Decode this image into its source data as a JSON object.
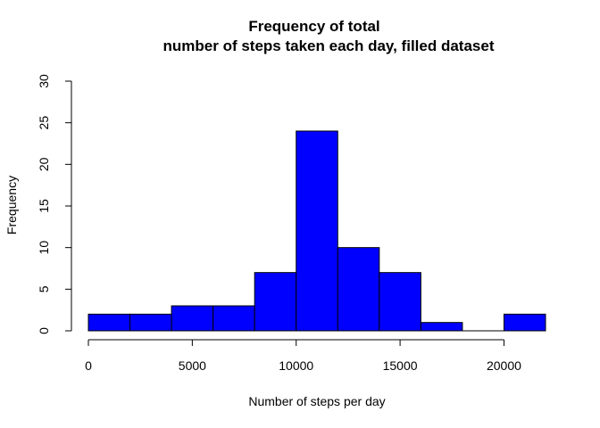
{
  "chart_data": {
    "type": "bar",
    "title_lines": [
      "Frequency of total",
      "number of steps taken each day, filled dataset"
    ],
    "xlabel": "Number of steps per day",
    "ylabel": "Frequency",
    "bin_edges": [
      0,
      2000,
      4000,
      6000,
      8000,
      10000,
      12000,
      14000,
      16000,
      18000,
      20000,
      22000
    ],
    "values": [
      2,
      2,
      3,
      3,
      7,
      24,
      10,
      7,
      1,
      0,
      2
    ],
    "xlim": [
      0,
      22000
    ],
    "ylim": [
      0,
      30
    ],
    "x_ticks": [
      0,
      5000,
      10000,
      15000,
      20000
    ],
    "y_ticks": [
      0,
      5,
      10,
      15,
      20,
      25,
      30
    ],
    "bar_color": "#0000ff",
    "grid": false
  }
}
